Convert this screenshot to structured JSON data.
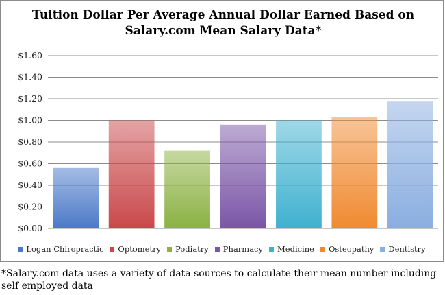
{
  "chart_data": {
    "type": "bar",
    "title": "Tuition Dollar Per Average Annual Dollar Earned Based on Salary.com Mean Salary Data*",
    "categories": [
      "Logan Chiropractic",
      "Optometry",
      "Podiatry",
      "Pharmacy",
      "Medicine",
      "Osteopathy",
      "Dentistry"
    ],
    "values": [
      0.56,
      1.0,
      0.72,
      0.96,
      1.0,
      1.03,
      1.18
    ],
    "colors": [
      "#4a79c8",
      "#c9484a",
      "#8bb142",
      "#7a56a6",
      "#3fb1cf",
      "#f08a30",
      "#8aaee0"
    ],
    "y_ticks": [
      "$0.00",
      "$0.20",
      "$0.40",
      "$0.60",
      "$0.80",
      "$1.00",
      "$1.20",
      "$1.40",
      "$1.60"
    ],
    "ylim": [
      0,
      1.6
    ],
    "xlabel": "",
    "ylabel": "",
    "grid": true,
    "legend_position": "bottom"
  },
  "footnote": "*Salary.com data uses a variety of data sources to calculate their mean number including self employed data"
}
